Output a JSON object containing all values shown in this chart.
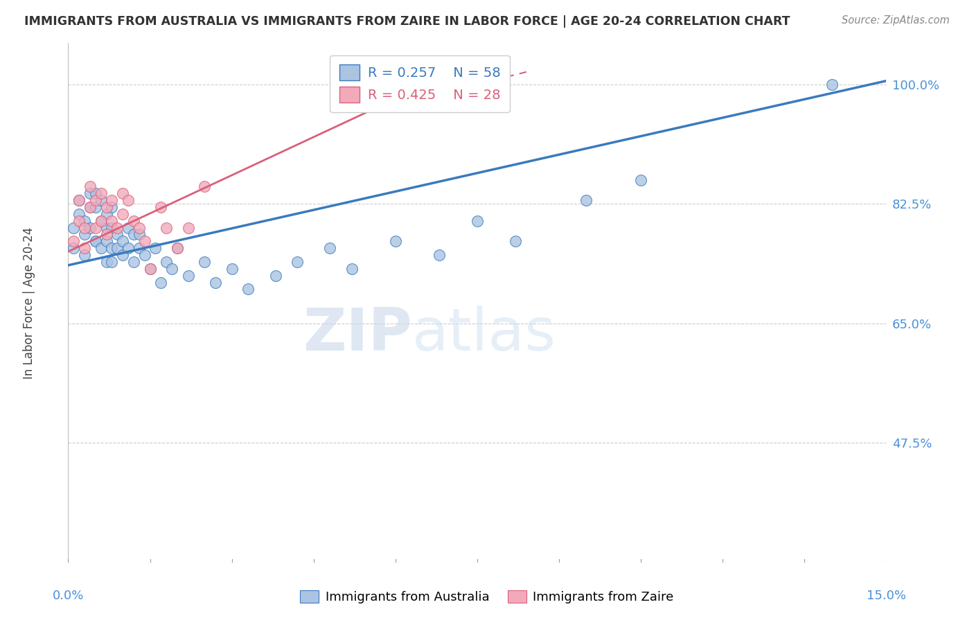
{
  "title": "IMMIGRANTS FROM AUSTRALIA VS IMMIGRANTS FROM ZAIRE IN LABOR FORCE | AGE 20-24 CORRELATION CHART",
  "source": "Source: ZipAtlas.com",
  "ylabel": "In Labor Force | Age 20-24",
  "yticks": [
    0.475,
    0.65,
    0.825,
    1.0
  ],
  "ytick_labels": [
    "47.5%",
    "65.0%",
    "82.5%",
    "100.0%"
  ],
  "xmin": 0.0,
  "xmax": 0.15,
  "ymin": 0.3,
  "ymax": 1.06,
  "legend_r_australia": "R = 0.257",
  "legend_n_australia": "N = 58",
  "legend_r_zaire": "R = 0.425",
  "legend_n_zaire": "N = 28",
  "color_australia": "#aac4e2",
  "color_zaire": "#f2aabb",
  "color_trendline_australia": "#3a7abf",
  "color_trendline_zaire": "#d9607a",
  "color_axis_labels": "#4a90d9",
  "color_title": "#333333",
  "color_grid": "#cccccc",
  "watermark_zip": "ZIP",
  "watermark_atlas": "atlas",
  "australia_x": [
    0.001,
    0.001,
    0.002,
    0.002,
    0.003,
    0.003,
    0.003,
    0.004,
    0.004,
    0.004,
    0.005,
    0.005,
    0.005,
    0.005,
    0.006,
    0.006,
    0.006,
    0.007,
    0.007,
    0.007,
    0.007,
    0.008,
    0.008,
    0.008,
    0.008,
    0.009,
    0.009,
    0.01,
    0.01,
    0.011,
    0.011,
    0.012,
    0.012,
    0.013,
    0.013,
    0.014,
    0.015,
    0.016,
    0.017,
    0.018,
    0.019,
    0.02,
    0.022,
    0.025,
    0.027,
    0.03,
    0.033,
    0.038,
    0.042,
    0.048,
    0.052,
    0.06,
    0.068,
    0.075,
    0.082,
    0.095,
    0.105,
    0.14
  ],
  "australia_y": [
    0.76,
    0.79,
    0.81,
    0.83,
    0.75,
    0.78,
    0.8,
    0.82,
    0.84,
    0.79,
    0.77,
    0.82,
    0.84,
    0.77,
    0.76,
    0.8,
    0.83,
    0.79,
    0.81,
    0.77,
    0.74,
    0.79,
    0.82,
    0.76,
    0.74,
    0.78,
    0.76,
    0.77,
    0.75,
    0.79,
    0.76,
    0.78,
    0.74,
    0.76,
    0.78,
    0.75,
    0.73,
    0.76,
    0.71,
    0.74,
    0.73,
    0.76,
    0.72,
    0.74,
    0.71,
    0.73,
    0.7,
    0.72,
    0.74,
    0.76,
    0.73,
    0.77,
    0.75,
    0.8,
    0.77,
    0.83,
    0.86,
    1.0
  ],
  "zaire_x": [
    0.001,
    0.002,
    0.002,
    0.003,
    0.003,
    0.004,
    0.004,
    0.005,
    0.005,
    0.006,
    0.006,
    0.007,
    0.007,
    0.008,
    0.008,
    0.009,
    0.01,
    0.01,
    0.011,
    0.012,
    0.013,
    0.014,
    0.015,
    0.017,
    0.018,
    0.02,
    0.022,
    0.025
  ],
  "zaire_y": [
    0.77,
    0.8,
    0.83,
    0.76,
    0.79,
    0.82,
    0.85,
    0.79,
    0.83,
    0.8,
    0.84,
    0.82,
    0.78,
    0.8,
    0.83,
    0.79,
    0.84,
    0.81,
    0.83,
    0.8,
    0.79,
    0.77,
    0.73,
    0.82,
    0.79,
    0.76,
    0.79,
    0.85
  ],
  "trendline_aus_x0": 0.0,
  "trendline_aus_x1": 0.15,
  "trendline_aus_y0": 0.735,
  "trendline_aus_y1": 1.005,
  "trendline_zaire_x0": 0.0,
  "trendline_zaire_x1": 0.055,
  "trendline_zaire_y0": 0.755,
  "trendline_zaire_y1": 0.96
}
